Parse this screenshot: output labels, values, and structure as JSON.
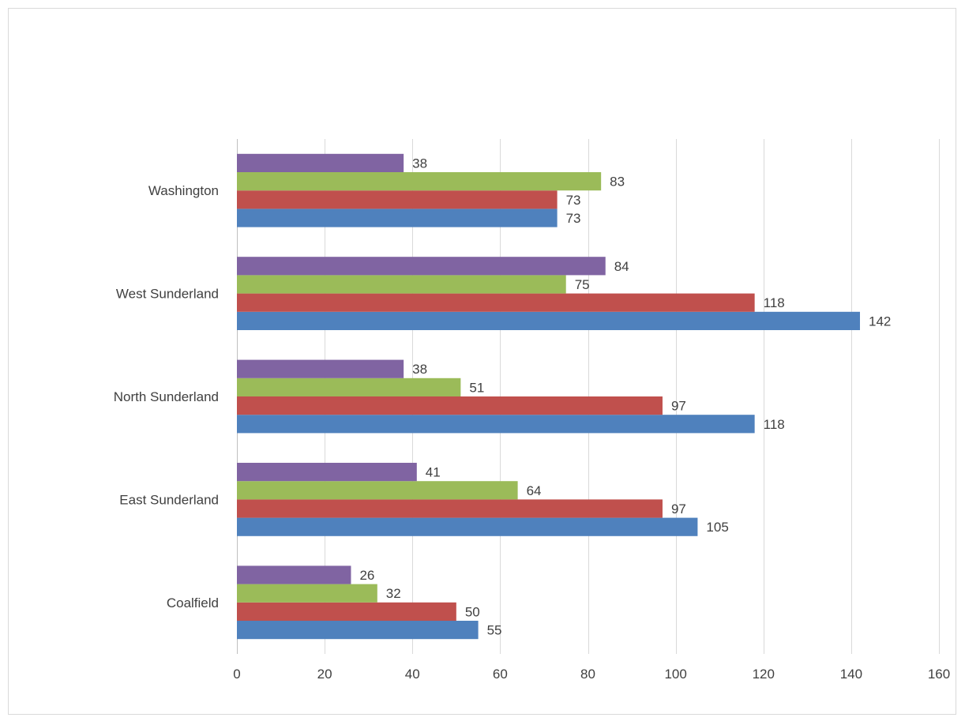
{
  "chart_data": {
    "type": "bar",
    "orientation": "horizontal",
    "categories": [
      "Coalfield",
      "East Sunderland",
      "North Sunderland",
      "West Sunderland",
      "Washington"
    ],
    "series": [
      {
        "values": [
          55,
          105,
          118,
          142,
          73
        ],
        "color": "#4f81bd"
      },
      {
        "values": [
          50,
          97,
          97,
          118,
          73
        ],
        "color": "#c0504d"
      },
      {
        "values": [
          32,
          64,
          51,
          75,
          83
        ],
        "color": "#9bbb59"
      },
      {
        "values": [
          26,
          41,
          38,
          84,
          38
        ],
        "color": "#8064a2"
      }
    ],
    "x_ticks": [
      "0",
      "20",
      "40",
      "60",
      "80",
      "100",
      "120",
      "140",
      "160"
    ],
    "xlim": [
      0,
      160
    ],
    "grid": "vertical",
    "data_labels": true,
    "title": "",
    "xlabel": "",
    "ylabel": ""
  }
}
